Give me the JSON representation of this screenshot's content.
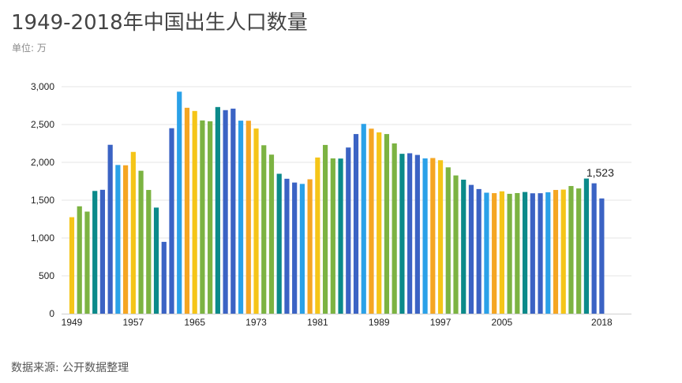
{
  "title": "1949-2018年中国出生人口数量",
  "unit": "单位: 万",
  "source": "数据来源: 公开数据整理",
  "chart_data": {
    "type": "bar",
    "title": "1949-2018年中国出生人口数量",
    "xlabel": "",
    "ylabel": "",
    "ylim": [
      0,
      3000
    ],
    "yticks": [
      0,
      500,
      1000,
      1500,
      2000,
      2500,
      3000
    ],
    "ytick_labels": [
      "0",
      "500",
      "1,000",
      "1,500",
      "2,000",
      "2,500",
      "3,000"
    ],
    "grid": true,
    "xtick_labels": [
      "1949",
      "1957",
      "1965",
      "1973",
      "1981",
      "1989",
      "1997",
      "2005",
      "2018"
    ],
    "categories": [
      "1949",
      "1950",
      "1951",
      "1952",
      "1953",
      "1954",
      "1955",
      "1956",
      "1957",
      "1958",
      "1959",
      "1960",
      "1961",
      "1962",
      "1963",
      "1964",
      "1965",
      "1966",
      "1967",
      "1968",
      "1969",
      "1970",
      "1971",
      "1972",
      "1973",
      "1974",
      "1975",
      "1976",
      "1977",
      "1978",
      "1979",
      "1980",
      "1981",
      "1982",
      "1983",
      "1984",
      "1985",
      "1986",
      "1987",
      "1988",
      "1989",
      "1990",
      "1991",
      "1992",
      "1993",
      "1994",
      "1995",
      "1996",
      "1997",
      "1998",
      "1999",
      "2000",
      "2001",
      "2002",
      "2003",
      "2004",
      "2005",
      "2006",
      "2007",
      "2008",
      "2009",
      "2010",
      "2011",
      "2012",
      "2013",
      "2014",
      "2015",
      "2016",
      "2017",
      "2018"
    ],
    "values": [
      1275,
      1419,
      1349,
      1622,
      1637,
      2232,
      1965,
      1961,
      2138,
      1889,
      1635,
      1402,
      949,
      2451,
      2934,
      2721,
      2679,
      2554,
      2543,
      2731,
      2690,
      2710,
      2551,
      2550,
      2447,
      2226,
      2102,
      1849,
      1783,
      1733,
      1715,
      1776,
      2064,
      2230,
      2052,
      2050,
      2196,
      2374,
      2508,
      2445,
      2396,
      2374,
      2250,
      2113,
      2120,
      2098,
      2052,
      2057,
      2028,
      1934,
      1827,
      1771,
      1702,
      1647,
      1599,
      1593,
      1617,
      1584,
      1594,
      1608,
      1591,
      1592,
      1604,
      1635,
      1640,
      1687,
      1655,
      1786,
      1723,
      1523
    ],
    "colors": [
      "#f5c518",
      "#7cb342",
      "#7cb342",
      "#0b8a8a",
      "#3b63c4",
      "#3b63c4",
      "#2aa1e8",
      "#f5a623",
      "#f5c518",
      "#7cb342",
      "#7cb342",
      "#0b8a8a",
      "#3b63c4",
      "#3b63c4",
      "#2aa1e8",
      "#f5a623",
      "#f5c518",
      "#7cb342",
      "#7cb342",
      "#0b8a8a",
      "#3b63c4",
      "#3b63c4",
      "#2aa1e8",
      "#f5a623",
      "#f5c518",
      "#7cb342",
      "#7cb342",
      "#0b8a8a",
      "#3b63c4",
      "#3b63c4",
      "#2aa1e8",
      "#f5a623",
      "#f5c518",
      "#7cb342",
      "#7cb342",
      "#0b8a8a",
      "#3b63c4",
      "#3b63c4",
      "#2aa1e8",
      "#f5a623",
      "#f5c518",
      "#7cb342",
      "#7cb342",
      "#0b8a8a",
      "#3b63c4",
      "#3b63c4",
      "#2aa1e8",
      "#f5a623",
      "#f5c518",
      "#7cb342",
      "#7cb342",
      "#0b8a8a",
      "#3b63c4",
      "#3b63c4",
      "#2aa1e8",
      "#f5a623",
      "#f5c518",
      "#7cb342",
      "#7cb342",
      "#0b8a8a",
      "#3b63c4",
      "#3b63c4",
      "#2aa1e8",
      "#f5a623",
      "#f5c518",
      "#7cb342",
      "#7cb342",
      "#0b8a8a",
      "#3b63c4",
      "#3b63c4"
    ],
    "annotation": {
      "category": "2018",
      "label": "1,523"
    }
  }
}
